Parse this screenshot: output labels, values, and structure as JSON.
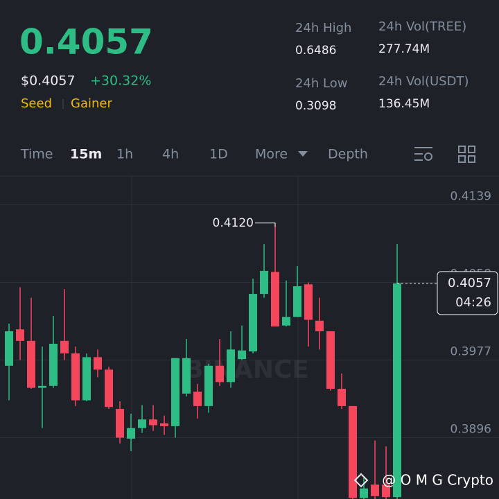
{
  "header": {
    "price": "0.4057",
    "price_usd": "$0.4057",
    "change": "+30.32%",
    "tags": [
      "Seed",
      "Gainer"
    ],
    "stats": [
      {
        "label": "24h High",
        "value": "0.6486"
      },
      {
        "label": "24h Vol(TREE)",
        "value": "277.74M"
      },
      {
        "label": "24h Low",
        "value": "0.3098"
      },
      {
        "label": "24h Vol(USDT)",
        "value": "136.45M"
      }
    ]
  },
  "tabs": [
    "Time",
    "15m",
    "1h",
    "4h",
    "1D",
    "More",
    "Depth"
  ],
  "chart_data": {
    "type": "candlestick",
    "open": [
      0.3971,
      0.4009,
      0.3997,
      0.3948,
      0.395,
      0.3997,
      0.3984,
      0.3935,
      0.398,
      0.3967,
      0.3926,
      0.3895,
      0.3906,
      0.3915,
      0.3911,
      0.3908,
      0.3942,
      0.3944,
      0.3929,
      0.3971,
      0.3954,
      0.3978,
      0.3986,
      0.4046,
      0.4069,
      0.4013,
      0.4022,
      0.4056,
      0.4018,
      0.4007,
      0.3947,
      0.3929,
      0.3833,
      0.3847,
      0.3847,
      0.3834
    ],
    "high": [
      0.4015,
      0.4053,
      0.4042,
      0.3991,
      0.4023,
      0.4051,
      0.3991,
      0.3984,
      0.3988,
      0.397,
      0.3934,
      0.3921,
      0.393,
      0.393,
      0.3919,
      0.3979,
      0.3999,
      0.3952,
      0.3973,
      0.3999,
      0.4007,
      0.4013,
      0.4062,
      0.4098,
      0.412,
      0.406,
      0.4075,
      0.4058,
      0.4042,
      0.4007,
      0.3963,
      0.3929,
      0.3854,
      0.3893,
      0.3887,
      0.4098
    ],
    "low": [
      0.3935,
      0.3977,
      0.3947,
      0.3906,
      0.3948,
      0.3977,
      0.3929,
      0.3934,
      0.3959,
      0.3926,
      0.389,
      0.3882,
      0.3901,
      0.3903,
      0.3899,
      0.3896,
      0.3939,
      0.3916,
      0.3922,
      0.395,
      0.3948,
      0.3977,
      0.3984,
      0.4042,
      0.4012,
      0.4012,
      0.4022,
      0.3991,
      0.3988,
      0.3945,
      0.3926,
      0.3832,
      0.3832,
      0.3832,
      0.3832,
      0.3832
    ],
    "close": [
      0.4007,
      0.3997,
      0.3948,
      0.395,
      0.3994,
      0.3984,
      0.3935,
      0.398,
      0.3967,
      0.3928,
      0.3896,
      0.3906,
      0.3915,
      0.3909,
      0.3908,
      0.3979,
      0.3979,
      0.3929,
      0.3971,
      0.3954,
      0.3988,
      0.3987,
      0.4046,
      0.407,
      0.4012,
      0.4022,
      0.4054,
      0.4019,
      0.4007,
      0.3947,
      0.3929,
      0.3833,
      0.3843,
      0.3835,
      0.3834,
      0.4057
    ],
    "ylim": [
      0.3832,
      0.4169
    ],
    "yticks": [
      0.4139,
      0.4058,
      0.3977,
      0.3896
    ],
    "grid": true,
    "colors": {
      "up": "#2ebd85",
      "down": "#f6465d"
    },
    "max_label": "0.4120",
    "last_price_label": "0.4057",
    "countdown": "04:26",
    "watermark": "BINANCE"
  },
  "footer": {
    "credit": "@ O M G Crypto"
  }
}
